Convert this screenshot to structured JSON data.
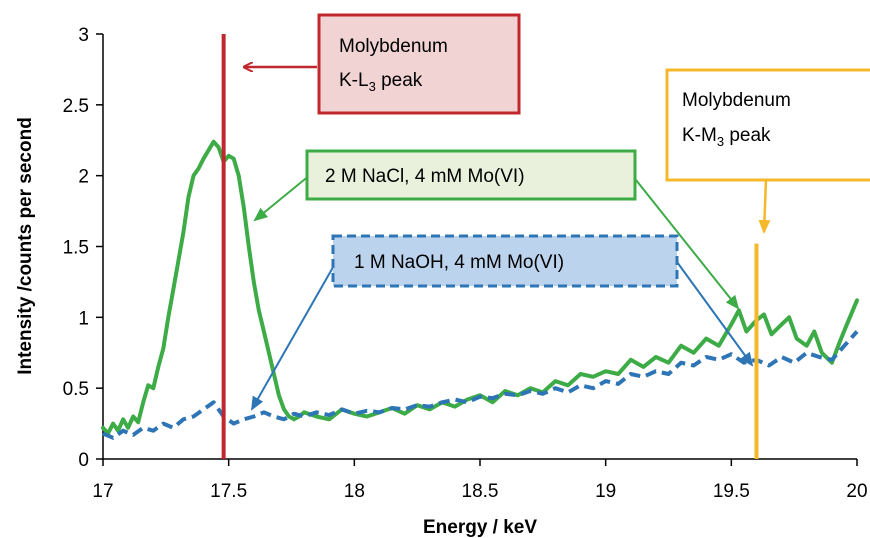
{
  "chart_data": {
    "type": "line",
    "xlabel": "Energy / keV",
    "ylabel": "Intensity /counts per second",
    "xlim": [
      17,
      20
    ],
    "ylim": [
      0,
      3
    ],
    "xticks": [
      "17",
      "17.5",
      "18",
      "18.5",
      "19",
      "19.5",
      "20"
    ],
    "yticks": [
      "0",
      "0.5",
      "1",
      "1.5",
      "2",
      "2.5",
      "3"
    ],
    "grid": false,
    "legend": "none",
    "series": [
      {
        "name": "2 M NaCl, 4 mM Mo(VI)",
        "color": "#3dab46",
        "x": [
          17.0,
          17.02,
          17.04,
          17.06,
          17.08,
          17.1,
          17.12,
          17.14,
          17.16,
          17.18,
          17.2,
          17.22,
          17.24,
          17.26,
          17.28,
          17.3,
          17.32,
          17.34,
          17.36,
          17.38,
          17.4,
          17.42,
          17.44,
          17.46,
          17.48,
          17.5,
          17.52,
          17.54,
          17.56,
          17.58,
          17.6,
          17.62,
          17.64,
          17.66,
          17.68,
          17.7,
          17.72,
          17.74,
          17.76,
          17.78,
          17.8,
          17.85,
          17.9,
          17.95,
          18.0,
          18.05,
          18.1,
          18.15,
          18.2,
          18.25,
          18.3,
          18.35,
          18.4,
          18.45,
          18.5,
          18.55,
          18.6,
          18.65,
          18.7,
          18.75,
          18.8,
          18.85,
          18.9,
          18.95,
          19.0,
          19.05,
          19.1,
          19.15,
          19.2,
          19.25,
          19.3,
          19.35,
          19.4,
          19.45,
          19.5,
          19.53,
          19.56,
          19.6,
          19.63,
          19.66,
          19.7,
          19.73,
          19.76,
          19.8,
          19.83,
          19.86,
          19.9,
          19.93,
          19.96,
          20.0
        ],
        "values": [
          0.22,
          0.18,
          0.25,
          0.2,
          0.28,
          0.22,
          0.3,
          0.26,
          0.4,
          0.52,
          0.5,
          0.65,
          0.78,
          1.0,
          1.2,
          1.4,
          1.6,
          1.85,
          2.0,
          2.05,
          2.12,
          2.18,
          2.24,
          2.2,
          2.1,
          2.14,
          2.12,
          2.0,
          1.78,
          1.5,
          1.25,
          1.05,
          0.9,
          0.75,
          0.6,
          0.45,
          0.35,
          0.3,
          0.28,
          0.3,
          0.33,
          0.3,
          0.28,
          0.35,
          0.32,
          0.3,
          0.33,
          0.36,
          0.32,
          0.38,
          0.35,
          0.4,
          0.37,
          0.42,
          0.45,
          0.4,
          0.48,
          0.45,
          0.5,
          0.47,
          0.55,
          0.52,
          0.6,
          0.58,
          0.62,
          0.6,
          0.7,
          0.65,
          0.72,
          0.68,
          0.8,
          0.75,
          0.85,
          0.8,
          0.95,
          1.05,
          0.9,
          0.98,
          1.02,
          0.88,
          0.95,
          1.0,
          0.85,
          0.8,
          0.9,
          0.75,
          0.68,
          0.82,
          0.95,
          1.12
        ]
      },
      {
        "name": "1 M NaOH, 4 mM Mo(VI)",
        "color": "#2e75b6",
        "dashed": true,
        "x": [
          17.0,
          17.04,
          17.08,
          17.12,
          17.16,
          17.2,
          17.24,
          17.28,
          17.32,
          17.36,
          17.4,
          17.44,
          17.48,
          17.52,
          17.56,
          17.6,
          17.64,
          17.68,
          17.72,
          17.76,
          17.8,
          17.85,
          17.9,
          17.95,
          18.0,
          18.05,
          18.1,
          18.15,
          18.2,
          18.25,
          18.3,
          18.35,
          18.4,
          18.45,
          18.5,
          18.55,
          18.6,
          18.65,
          18.7,
          18.75,
          18.8,
          18.85,
          18.9,
          18.95,
          19.0,
          19.05,
          19.1,
          19.15,
          19.2,
          19.25,
          19.3,
          19.35,
          19.4,
          19.45,
          19.5,
          19.55,
          19.6,
          19.65,
          19.7,
          19.75,
          19.8,
          19.85,
          19.9,
          19.95,
          20.0
        ],
        "values": [
          0.18,
          0.15,
          0.2,
          0.17,
          0.22,
          0.2,
          0.25,
          0.22,
          0.28,
          0.3,
          0.35,
          0.4,
          0.3,
          0.25,
          0.28,
          0.3,
          0.33,
          0.3,
          0.28,
          0.32,
          0.3,
          0.33,
          0.31,
          0.35,
          0.32,
          0.34,
          0.33,
          0.36,
          0.35,
          0.38,
          0.37,
          0.4,
          0.42,
          0.4,
          0.44,
          0.43,
          0.46,
          0.45,
          0.48,
          0.46,
          0.5,
          0.47,
          0.52,
          0.5,
          0.55,
          0.53,
          0.6,
          0.58,
          0.62,
          0.6,
          0.68,
          0.66,
          0.72,
          0.7,
          0.74,
          0.68,
          0.7,
          0.66,
          0.72,
          0.68,
          0.75,
          0.72,
          0.7,
          0.8,
          0.9
        ]
      }
    ],
    "vlines": [
      {
        "x": 17.48,
        "y0": 0,
        "y1": 3.0,
        "color": "#c0282d"
      },
      {
        "x": 19.6,
        "y0": 0,
        "y1": 1.52,
        "color": "#f5b82a"
      }
    ],
    "annotations": [
      {
        "id": "mo-l3",
        "line1": "Molybdenum",
        "line2_main": "K-L",
        "line2_sub": "3",
        "line2_tail": " peak",
        "fill": "#f2d3d3",
        "stroke": "#c0282d",
        "color": "#c0282d"
      },
      {
        "id": "mo-m3",
        "line1": "Molybdenum",
        "line2_main": "K-M",
        "line2_sub": "3",
        "line2_tail": " peak",
        "fill": "#ffffff",
        "stroke": "#f5b82a",
        "color": "#f5b82a"
      },
      {
        "id": "nacl",
        "text": "2 M NaCl, 4 mM Mo(VI)",
        "fill": "#e9f1dc",
        "stroke": "#3dab46",
        "color": "#3dab46"
      },
      {
        "id": "naoh",
        "text": "1 M NaOH, 4 mM Mo(VI)",
        "fill": "#bcd3ee",
        "stroke": "#2e75b6",
        "color": "#2e75b6"
      }
    ]
  }
}
